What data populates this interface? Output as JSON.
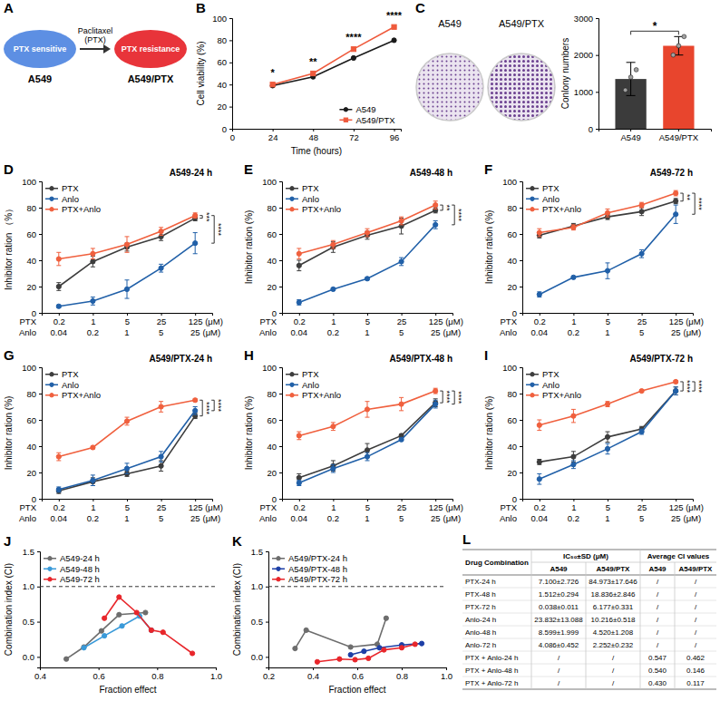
{
  "diagram": {
    "panel": "A",
    "nodes": [
      {
        "text": "PTX sensitive",
        "label": "A549",
        "color": "#5d8fe3"
      },
      {
        "text": "PTX resistance",
        "label": "A549/PTX",
        "color": "#e8343a"
      }
    ],
    "arrow_label": [
      "Paclitaxel",
      "(PTX)"
    ]
  },
  "images": {
    "labels": [
      "A549",
      "A549/PTX"
    ]
  },
  "chart_data": [
    {
      "panel": "B",
      "type": "line",
      "x_label": "Time (hours)",
      "y_label": "Cell viability (%)",
      "x": [
        24,
        48,
        72,
        96
      ],
      "xlim": [
        0,
        100
      ],
      "xticks": [
        0,
        24,
        48,
        72,
        96
      ],
      "ylim": [
        0,
        100
      ],
      "yticks": [
        0,
        20,
        40,
        60,
        80,
        100
      ],
      "legend": "bottom-right",
      "series": [
        {
          "name": "A549",
          "color": "#1a1a1a",
          "marker": "circle",
          "values": [
            39,
            47,
            64,
            80
          ]
        },
        {
          "name": "A549/PTX",
          "color": "#ef5a3c",
          "marker": "square",
          "values": [
            40,
            50,
            72,
            92
          ]
        }
      ],
      "annotations": [
        "*",
        "**",
        "****",
        "****"
      ]
    },
    {
      "panel": "C",
      "type": "bar",
      "categories": [
        "A549",
        "A549/PTX"
      ],
      "values": [
        1350,
        2250
      ],
      "errors": [
        450,
        250
      ],
      "points": [
        [
          1050,
          1400,
          1600
        ],
        [
          2000,
          2250,
          2500
        ]
      ],
      "colors": [
        "#3b3b3b",
        "#e8452d"
      ],
      "y_label": "Conlony numbers",
      "ylim": [
        0,
        3000
      ],
      "yticks": [
        0,
        1000,
        2000,
        3000
      ],
      "significance": [
        {
          "text": "*",
          "between": [
            "A549",
            "A549/PTX"
          ]
        }
      ]
    },
    {
      "panel": "D",
      "type": "line",
      "title": "A549-24 h",
      "y_label": "Inhibitor ration （%）",
      "categories": [
        "0.2",
        "1",
        "5",
        "25",
        "125"
      ],
      "categories_2": [
        "0.04",
        "0.2",
        "1",
        "5",
        "25"
      ],
      "category_rows": [
        "PTX",
        "Anlo"
      ],
      "unit": "(μM)",
      "ylim": [
        0,
        100
      ],
      "yticks": [
        0,
        20,
        40,
        60,
        80,
        100
      ],
      "legend": "top-left",
      "series": [
        {
          "name": "PTX",
          "color": "#3d3d3d",
          "marker": "circle",
          "values": [
            20,
            39,
            50,
            58,
            72
          ],
          "errors": [
            3,
            4,
            3,
            3,
            2
          ]
        },
        {
          "name": "Anlo",
          "color": "#2160a8",
          "marker": "circle",
          "values": [
            5,
            9,
            18,
            34,
            53
          ],
          "errors": [
            1,
            3,
            7,
            3,
            8
          ]
        },
        {
          "name": "PTX+Anlo",
          "color": "#f0603e",
          "marker": "circle",
          "values": [
            41,
            45,
            52,
            62,
            74
          ],
          "errors": [
            5,
            4,
            6,
            3,
            2
          ]
        }
      ],
      "significance": [
        {
          "text": "***",
          "between": [
            "PTX+Anlo",
            "PTX"
          ]
        },
        {
          "text": "****",
          "between": [
            "PTX+Anlo",
            "Anlo"
          ]
        }
      ]
    },
    {
      "panel": "E",
      "type": "line",
      "title": "A549-48 h",
      "y_label": "Inhibitor ration (%)",
      "categories": [
        "0.2",
        "1",
        "5",
        "25",
        "125"
      ],
      "categories_2": [
        "0.04",
        "0.2",
        "1",
        "5",
        "25"
      ],
      "category_rows": [
        "PTX",
        "Anlo"
      ],
      "unit": "(μM)",
      "ylim": [
        0,
        100
      ],
      "yticks": [
        0,
        20,
        40,
        60,
        80,
        100
      ],
      "legend": "top-left",
      "series": [
        {
          "name": "PTX",
          "color": "#3d3d3d",
          "marker": "circle",
          "values": [
            36,
            50,
            59,
            66,
            78
          ],
          "errors": [
            4,
            4,
            3,
            6,
            2
          ]
        },
        {
          "name": "Anlo",
          "color": "#2160a8",
          "marker": "circle",
          "values": [
            8,
            18,
            26,
            39,
            67
          ],
          "errors": [
            2,
            1,
            1,
            3,
            3
          ]
        },
        {
          "name": "PTX+Anlo",
          "color": "#f0603e",
          "marker": "circle",
          "values": [
            45,
            52,
            61,
            70,
            82
          ],
          "errors": [
            4,
            3,
            3,
            3,
            3
          ]
        }
      ],
      "significance": [
        {
          "text": "**",
          "between": [
            "PTX+Anlo",
            "PTX"
          ]
        },
        {
          "text": "****",
          "between": [
            "PTX+Anlo",
            "Anlo"
          ]
        }
      ]
    },
    {
      "panel": "F",
      "type": "line",
      "title": "A549-72 h",
      "y_label": "Inhibitor ration (%)",
      "categories": [
        "0.2",
        "1",
        "5",
        "25",
        "125"
      ],
      "categories_2": [
        "0.04",
        "0.2",
        "1",
        "5",
        "25"
      ],
      "category_rows": [
        "PTX",
        "Anlo"
      ],
      "unit": "(μM)",
      "ylim": [
        0,
        100
      ],
      "yticks": [
        0,
        20,
        40,
        60,
        80,
        100
      ],
      "legend": "top-left",
      "series": [
        {
          "name": "PTX",
          "color": "#3d3d3d",
          "marker": "circle",
          "values": [
            59,
            66,
            73,
            77,
            85
          ],
          "errors": [
            2,
            2,
            2,
            3,
            2
          ]
        },
        {
          "name": "Anlo",
          "color": "#2160a8",
          "marker": "circle",
          "values": [
            14,
            27,
            32,
            45,
            75
          ],
          "errors": [
            2,
            1,
            6,
            3,
            7
          ]
        },
        {
          "name": "PTX+Anlo",
          "color": "#f0603e",
          "marker": "circle",
          "values": [
            61,
            65,
            76,
            82,
            91
          ],
          "errors": [
            3,
            2,
            3,
            2,
            2
          ]
        }
      ],
      "significance": [
        {
          "text": "**",
          "between": [
            "PTX+Anlo",
            "PTX"
          ]
        },
        {
          "text": "****",
          "between": [
            "PTX+Anlo",
            "Anlo"
          ]
        }
      ]
    },
    {
      "panel": "G",
      "type": "line",
      "title": "A549/PTX-24 h",
      "y_label": "Inhibitor ration (%)",
      "categories": [
        "0.2",
        "1",
        "5",
        "25",
        "125"
      ],
      "categories_2": [
        "0.04",
        "0.2",
        "1",
        "5",
        "25"
      ],
      "category_rows": [
        "PTX",
        "Anlo"
      ],
      "unit": "(μM)",
      "ylim": [
        0,
        100
      ],
      "yticks": [
        0,
        20,
        40,
        60,
        80,
        100
      ],
      "legend": "top-left",
      "series": [
        {
          "name": "PTX",
          "color": "#3d3d3d",
          "marker": "circle",
          "values": [
            6,
            13,
            19,
            25,
            63
          ],
          "errors": [
            2,
            3,
            2,
            4,
            2
          ]
        },
        {
          "name": "Anlo",
          "color": "#2160a8",
          "marker": "circle",
          "values": [
            7,
            14,
            23,
            32,
            67
          ],
          "errors": [
            2,
            4,
            4,
            4,
            3
          ]
        },
        {
          "name": "PTX+Anlo",
          "color": "#f0603e",
          "marker": "circle",
          "values": [
            32,
            39,
            59,
            70,
            75
          ],
          "errors": [
            3,
            1,
            3,
            4,
            1
          ]
        }
      ],
      "significance": [
        {
          "text": "****",
          "between": [
            "PTX+Anlo",
            "PTX"
          ]
        },
        {
          "text": "****",
          "between": [
            "PTX+Anlo",
            "Anlo"
          ]
        }
      ]
    },
    {
      "panel": "H",
      "type": "line",
      "title": "A549/PTX-48 h",
      "y_label": "Inhibitor ration (%)",
      "categories": [
        "0.2",
        "1",
        "5",
        "25",
        "125"
      ],
      "categories_2": [
        "0.04",
        "0.2",
        "1",
        "5",
        "25"
      ],
      "category_rows": [
        "PTX",
        "Anlo"
      ],
      "unit": "(μM)",
      "ylim": [
        0,
        100
      ],
      "yticks": [
        0,
        20,
        40,
        60,
        80,
        100
      ],
      "legend": "top-left",
      "series": [
        {
          "name": "PTX",
          "color": "#3d3d3d",
          "marker": "circle",
          "values": [
            16,
            25,
            37,
            48,
            73
          ],
          "errors": [
            3,
            4,
            5,
            1,
            3
          ]
        },
        {
          "name": "Anlo",
          "color": "#2160a8",
          "marker": "circle",
          "values": [
            12,
            23,
            32,
            45,
            72
          ],
          "errors": [
            2,
            3,
            3,
            1,
            3
          ]
        },
        {
          "name": "PTX+Anlo",
          "color": "#f0603e",
          "marker": "circle",
          "values": [
            48,
            55,
            68,
            72,
            82
          ],
          "errors": [
            3,
            3,
            6,
            5,
            2
          ]
        }
      ],
      "significance": [
        {
          "text": "****",
          "between": [
            "PTX+Anlo",
            "PTX"
          ]
        },
        {
          "text": "****",
          "between": [
            "PTX+Anlo",
            "Anlo"
          ]
        }
      ]
    },
    {
      "panel": "I",
      "type": "line",
      "title": "A549/PTX-72 h",
      "y_label": "Inhibitor ration (%)",
      "categories": [
        "0.2",
        "1",
        "5",
        "25",
        "125"
      ],
      "categories_2": [
        "0.04",
        "0.2",
        "1",
        "5",
        "25"
      ],
      "category_rows": [
        "PTX",
        "Anlo"
      ],
      "unit": "(μM)",
      "ylim": [
        0,
        100
      ],
      "yticks": [
        0,
        20,
        40,
        60,
        80,
        100
      ],
      "legend": "top-left",
      "series": [
        {
          "name": "PTX",
          "color": "#3d3d3d",
          "marker": "circle",
          "values": [
            28,
            32,
            47,
            53,
            82
          ],
          "errors": [
            2,
            4,
            4,
            2,
            3
          ]
        },
        {
          "name": "Anlo",
          "color": "#2160a8",
          "marker": "circle",
          "values": [
            15,
            26,
            38,
            51,
            82
          ],
          "errors": [
            4,
            3,
            4,
            2,
            3
          ]
        },
        {
          "name": "PTX+Anlo",
          "color": "#f0603e",
          "marker": "circle",
          "values": [
            56,
            63,
            72,
            82,
            89
          ],
          "errors": [
            4,
            5,
            2,
            1,
            1
          ]
        }
      ],
      "significance": [
        {
          "text": "****",
          "between": [
            "PTX+Anlo",
            "PTX"
          ]
        },
        {
          "text": "****",
          "between": [
            "PTX+Anlo",
            "Anlo"
          ]
        }
      ]
    },
    {
      "panel": "J",
      "type": "line",
      "x_label": "Fraction effect",
      "y_label": "Combination index (CI)",
      "xlim": [
        0.4,
        1.0
      ],
      "xticks": [
        0.4,
        0.6,
        0.8,
        {
          "value": 1.0,
          "label": "1.0"
        }
      ],
      "ylim": [
        -0.15,
        1.5
      ],
      "yticks": [
        {
          "value": 0,
          "label": "0.0"
        },
        0.5,
        {
          "value": 1.0,
          "label": "1.0"
        },
        1.5
      ],
      "reference_line": 1.0,
      "legend": "top-left",
      "series": [
        {
          "name": "A549-24 h",
          "color": "#6d6d6d",
          "marker": "circle",
          "x": [
            0.49,
            0.55,
            0.61,
            0.67,
            0.76
          ],
          "values": [
            -0.03,
            0.14,
            0.37,
            0.6,
            0.63
          ]
        },
        {
          "name": "A549-48 h",
          "color": "#3a9ad9",
          "marker": "circle",
          "x": [
            0.55,
            0.62,
            0.68,
            0.74,
            0.78
          ],
          "values": [
            0.13,
            0.3,
            0.44,
            0.58,
            0.38
          ]
        },
        {
          "name": "A549-72 h",
          "color": "#e8262b",
          "marker": "circle",
          "x": [
            0.62,
            0.67,
            0.73,
            0.78,
            0.82,
            0.92
          ],
          "values": [
            0.55,
            0.85,
            0.63,
            0.38,
            0.35,
            0.05
          ]
        }
      ]
    },
    {
      "panel": "K",
      "type": "line",
      "x_label": "Fraction effect",
      "y_label": "Combination index (CI)",
      "xlim": [
        0.2,
        1.0
      ],
      "xticks": [
        0.2,
        0.4,
        0.6,
        0.8,
        {
          "value": 1.0,
          "label": "1.0"
        }
      ],
      "ylim": [
        -0.15,
        1.5
      ],
      "yticks": [
        {
          "value": 0,
          "label": "0.0"
        },
        0.5,
        {
          "value": 1.0,
          "label": "1.0"
        },
        1.5
      ],
      "reference_line": 1.0,
      "legend": "top-left",
      "series": [
        {
          "name": "A549/PTX-24 h",
          "color": "#6d6d6d",
          "marker": "circle",
          "x": [
            0.32,
            0.37,
            0.57,
            0.69,
            0.73
          ],
          "values": [
            0.12,
            0.38,
            0.14,
            0.18,
            0.55
          ]
        },
        {
          "name": "A549/PTX-48 h",
          "color": "#1d3fa6",
          "marker": "circle",
          "x": [
            0.57,
            0.63,
            0.7,
            0.8,
            0.89
          ],
          "values": [
            0.03,
            0.08,
            0.13,
            0.17,
            0.19
          ]
        },
        {
          "name": "A549/PTX-72 h",
          "color": "#e8262b",
          "marker": "circle",
          "x": [
            0.42,
            0.52,
            0.59,
            0.65,
            0.72,
            0.8,
            0.86
          ],
          "values": [
            -0.07,
            -0.03,
            -0.04,
            -0.02,
            0.1,
            0.13,
            0.18
          ]
        }
      ]
    }
  ],
  "table": {
    "panel": "L",
    "header": [
      "Drug Combination",
      "IC₅₀±SD (μM)",
      "Average CI values"
    ],
    "subheader": [
      "A549",
      "A549/PTX",
      "A549",
      "A549/PTX"
    ],
    "rows": [
      [
        "PTX-24 h",
        "7.100±2.726",
        "84.973±17.646",
        "/",
        "/"
      ],
      [
        "PTX-48 h",
        "1.512±0.294",
        "18.836±2.846",
        "/",
        "/"
      ],
      [
        "PTX-72 h",
        "0.038±0.011",
        "6.177±0.331",
        "/",
        "/"
      ],
      [
        "Anlo-24 h",
        "23.832±13.088",
        "10.216±0.518",
        "/",
        "/"
      ],
      [
        "Anlo-48 h",
        "8.599±1.999",
        "4.520±1.208",
        "/",
        "/"
      ],
      [
        "Anlo-72 h",
        "4.086±0.452",
        "2.252±0.232",
        "/",
        "/"
      ],
      [
        "PTX + Anlo-24 h",
        "/",
        "/",
        "0.547",
        "0.462"
      ],
      [
        "PTX + Anlo-48 h",
        "/",
        "/",
        "0.540",
        "0.146"
      ],
      [
        "PTX + Anlo-72 h",
        "/",
        "/",
        "0.430",
        "0.117"
      ]
    ]
  }
}
